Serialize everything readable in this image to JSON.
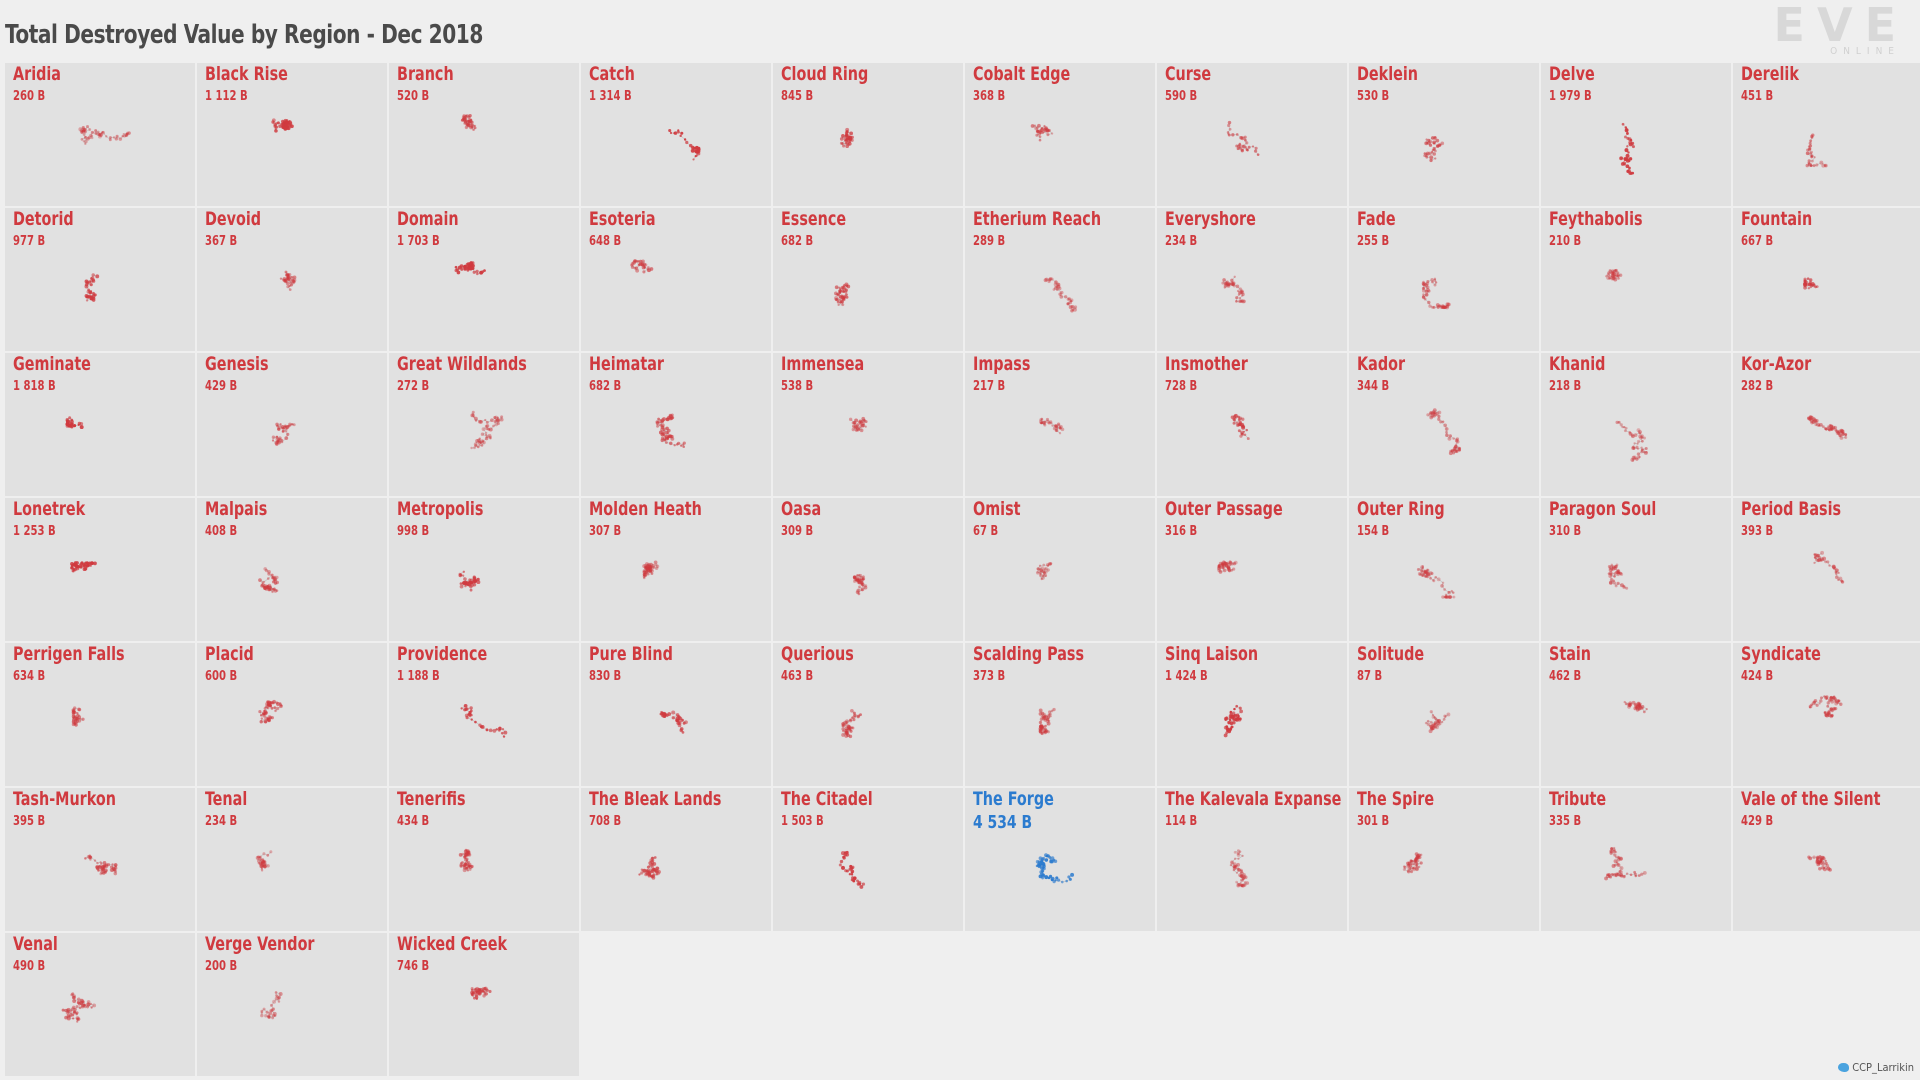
{
  "title": "Total Destroyed Value by Region - Dec 2018",
  "logo": {
    "main": "EVE",
    "sub": "ONLINE"
  },
  "credit": "CCP_Larrikin",
  "colors": {
    "default": "#d03a3f",
    "highlight": "#2b7bcf",
    "link": "#c4c4c4"
  },
  "chart_data": {
    "type": "small-multiples",
    "title": "Total Destroyed Value by Region - Dec 2018",
    "unit": "B",
    "highlight": "The Forge",
    "regions": [
      {
        "name": "Aridia",
        "value": "260 B"
      },
      {
        "name": "Black Rise",
        "value": "1 112 B"
      },
      {
        "name": "Branch",
        "value": "520 B"
      },
      {
        "name": "Catch",
        "value": "1 314 B"
      },
      {
        "name": "Cloud Ring",
        "value": "845 B"
      },
      {
        "name": "Cobalt Edge",
        "value": "368 B"
      },
      {
        "name": "Curse",
        "value": "590 B"
      },
      {
        "name": "Deklein",
        "value": "530 B"
      },
      {
        "name": "Delve",
        "value": "1 979 B"
      },
      {
        "name": "Derelik",
        "value": "451 B"
      },
      {
        "name": "Detorid",
        "value": "977 B"
      },
      {
        "name": "Devoid",
        "value": "367 B"
      },
      {
        "name": "Domain",
        "value": "1 703 B"
      },
      {
        "name": "Esoteria",
        "value": "648 B"
      },
      {
        "name": "Essence",
        "value": "682 B"
      },
      {
        "name": "Etherium Reach",
        "value": "289 B"
      },
      {
        "name": "Everyshore",
        "value": "234 B"
      },
      {
        "name": "Fade",
        "value": "255 B"
      },
      {
        "name": "Feythabolis",
        "value": "210 B"
      },
      {
        "name": "Fountain",
        "value": "667 B"
      },
      {
        "name": "Geminate",
        "value": "1 818 B"
      },
      {
        "name": "Genesis",
        "value": "429 B"
      },
      {
        "name": "Great Wildlands",
        "value": "272 B"
      },
      {
        "name": "Heimatar",
        "value": "682 B"
      },
      {
        "name": "Immensea",
        "value": "538 B"
      },
      {
        "name": "Impass",
        "value": "217 B"
      },
      {
        "name": "Insmother",
        "value": "728 B"
      },
      {
        "name": "Kador",
        "value": "344 B"
      },
      {
        "name": "Khanid",
        "value": "218 B"
      },
      {
        "name": "Kor-Azor",
        "value": "282 B"
      },
      {
        "name": "Lonetrek",
        "value": "1 253 B"
      },
      {
        "name": "Malpais",
        "value": "408 B"
      },
      {
        "name": "Metropolis",
        "value": "998 B"
      },
      {
        "name": "Molden Heath",
        "value": "307 B"
      },
      {
        "name": "Oasa",
        "value": "309 B"
      },
      {
        "name": "Omist",
        "value": "67 B"
      },
      {
        "name": "Outer Passage",
        "value": "316 B"
      },
      {
        "name": "Outer Ring",
        "value": "154 B"
      },
      {
        "name": "Paragon Soul",
        "value": "310 B"
      },
      {
        "name": "Period Basis",
        "value": "393 B"
      },
      {
        "name": "Perrigen Falls",
        "value": "634 B"
      },
      {
        "name": "Placid",
        "value": "600 B"
      },
      {
        "name": "Providence",
        "value": "1 188 B"
      },
      {
        "name": "Pure Blind",
        "value": "830 B"
      },
      {
        "name": "Querious",
        "value": "463 B"
      },
      {
        "name": "Scalding Pass",
        "value": "373 B"
      },
      {
        "name": "Sinq Laison",
        "value": "1 424 B"
      },
      {
        "name": "Solitude",
        "value": "87 B"
      },
      {
        "name": "Stain",
        "value": "462 B"
      },
      {
        "name": "Syndicate",
        "value": "424 B"
      },
      {
        "name": "Tash-Murkon",
        "value": "395 B"
      },
      {
        "name": "Tenal",
        "value": "234 B"
      },
      {
        "name": "Tenerifis",
        "value": "434 B"
      },
      {
        "name": "The Bleak Lands",
        "value": "708 B"
      },
      {
        "name": "The Citadel",
        "value": "1 503 B"
      },
      {
        "name": "The Forge",
        "value": "4 534 B"
      },
      {
        "name": "The Kalevala Expanse",
        "value": "114 B"
      },
      {
        "name": "The Spire",
        "value": "301 B"
      },
      {
        "name": "Tribute",
        "value": "335 B"
      },
      {
        "name": "Vale of the Silent",
        "value": "429 B"
      },
      {
        "name": "Venal",
        "value": "490 B"
      },
      {
        "name": "Verge Vendor",
        "value": "200 B"
      },
      {
        "name": "Wicked Creek",
        "value": "746 B"
      }
    ]
  }
}
